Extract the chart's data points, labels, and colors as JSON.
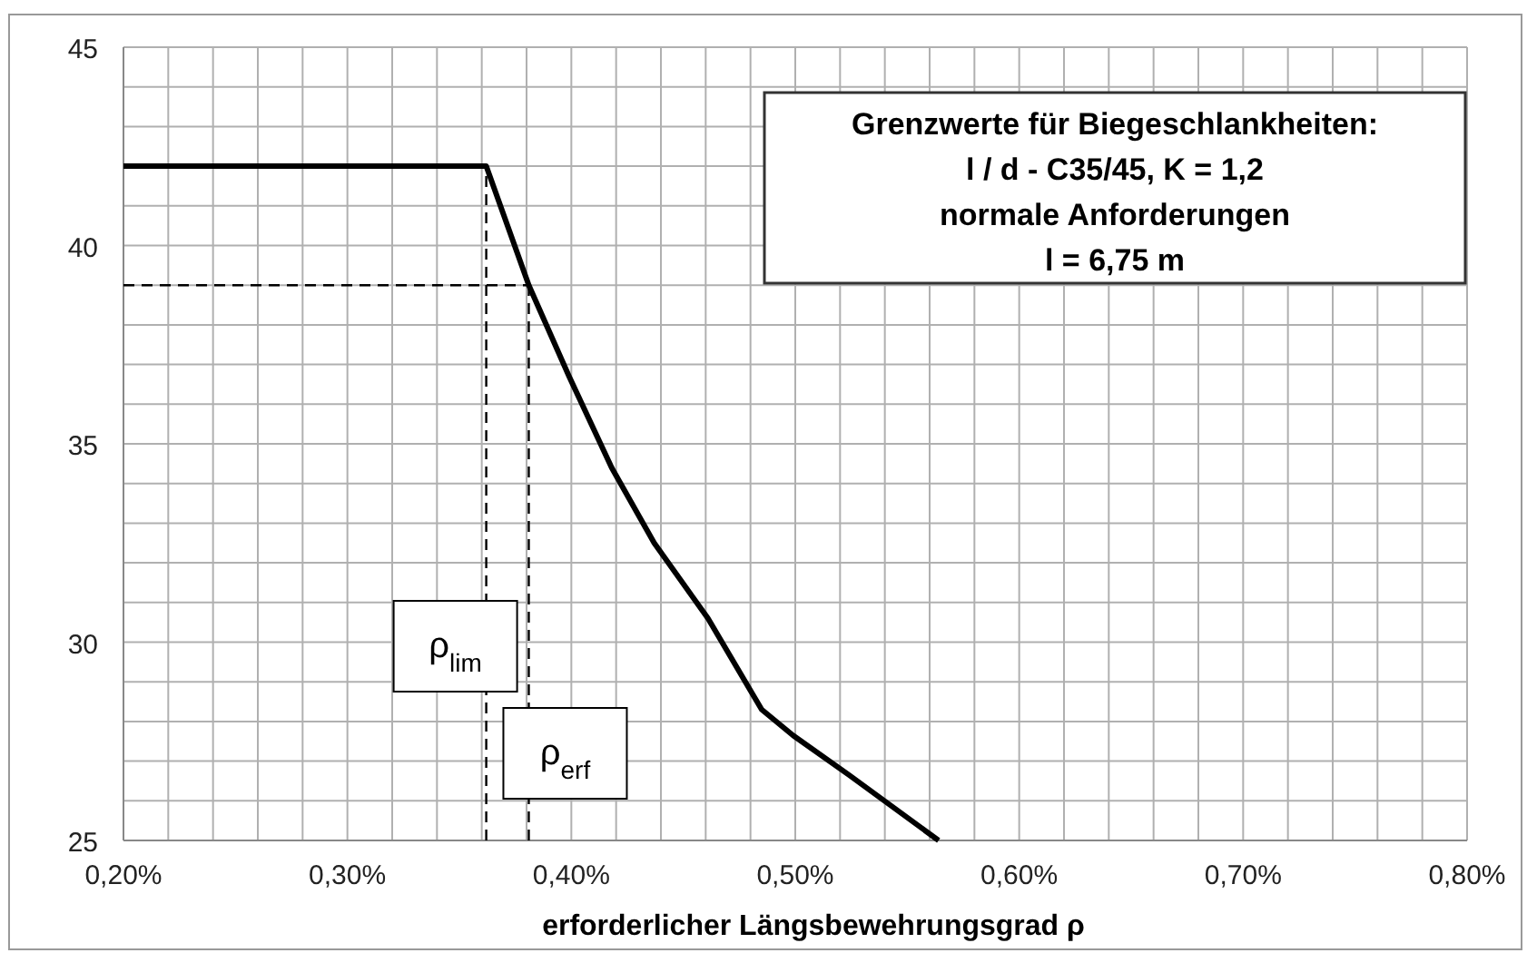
{
  "chart_data": {
    "type": "line",
    "xlabel": "erforderlicher Längsbewehrungsgrad ρ",
    "x": [
      0.2,
      0.362,
      0.381,
      0.399,
      0.418,
      0.437,
      0.461,
      0.485,
      0.499,
      0.524,
      0.564
    ],
    "series": [
      {
        "color": "#000000",
        "values": [
          42,
          42,
          39,
          36.7,
          34.4,
          32.5,
          30.6,
          28.3,
          27.65,
          26.65,
          25
        ]
      },
      {
        "name": "ρ$_{lim}$",
        "color": "#000000",
        "x": [
          0.362,
          0.362
        ],
        "values": [
          25,
          42
        ],
        "line_style": "dashed"
      },
      {
        "name": "ρ$_{erf}$",
        "color": "#000000",
        "x": [
          0.381,
          0.381
        ],
        "values": [
          25,
          39
        ],
        "line_style": "dashed"
      },
      {
        "color": "#000000",
        "x": [
          0.2,
          0.381
        ],
        "values": [
          39,
          39
        ],
        "line_style": "dashed"
      }
    ],
    "xlim": [
      0.2,
      0.8
    ],
    "ylim": [
      25,
      45
    ],
    "xticks": [
      {
        "value": 0.2,
        "label": "0,20%"
      },
      {
        "value": 0.3,
        "label": "0,30%"
      },
      {
        "value": 0.4,
        "label": "0,40%"
      },
      {
        "value": 0.5,
        "label": "0,50%"
      },
      {
        "value": 0.6,
        "label": "0,60%"
      },
      {
        "value": 0.7,
        "label": "0,70%"
      },
      {
        "value": 0.8,
        "label": "0,80%"
      }
    ],
    "yticks": [
      25,
      30,
      35,
      40,
      45
    ],
    "grid": true,
    "marker": "none",
    "line_style": "solid",
    "annotations": [
      "Grenzwerte für Biegeschlankheiten:",
      "l / d - C35/45, K = 1,2",
      "normale Anforderungen",
      "l = 6,75 m"
    ]
  }
}
